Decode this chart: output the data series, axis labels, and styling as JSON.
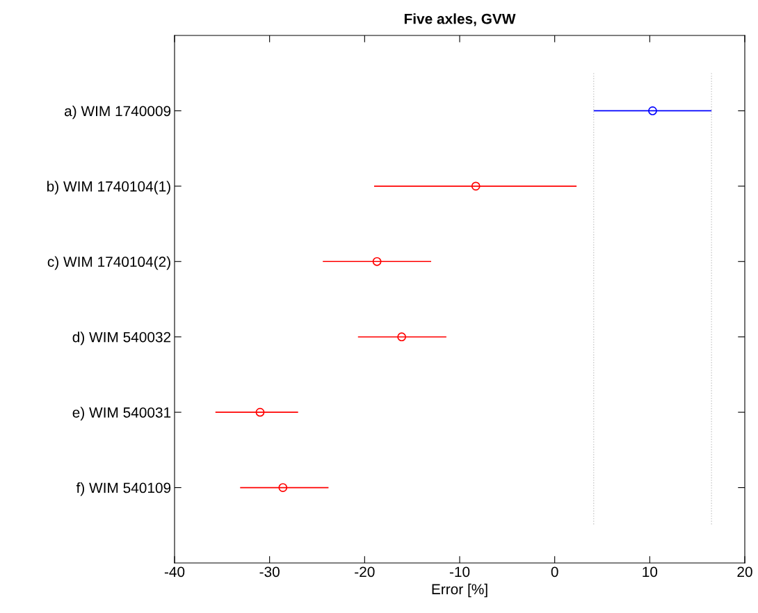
{
  "chart_data": {
    "type": "scatter",
    "orientation": "horizontal",
    "title": "Five axles, GVW",
    "xlabel": "Error [%]",
    "categories": [
      "a) WIM 1740009",
      "b) WIM 1740104(1)",
      "c) WIM 1740104(2)",
      "d) WIM 540032",
      "e) WIM 540031",
      "f) WIM 540109"
    ],
    "values": [
      10.3,
      -8.3,
      -18.7,
      -16.1,
      -31.0,
      -28.6
    ],
    "errors": [
      [
        4.1,
        16.5
      ],
      [
        -19.0,
        2.3
      ],
      [
        -24.4,
        -13.0
      ],
      [
        -20.7,
        -11.4
      ],
      [
        -35.7,
        -27.0
      ],
      [
        -33.1,
        -23.8
      ]
    ],
    "colors": [
      "#0000ff",
      "#ff0000",
      "#ff0000",
      "#ff0000",
      "#ff0000",
      "#ff0000"
    ],
    "marker": "circle",
    "xlim": [
      -40,
      20
    ],
    "xticks": [
      -40,
      -30,
      -20,
      -10,
      0,
      10,
      20
    ],
    "ref_lines": [
      {
        "axis": "x",
        "value": 4.1,
        "color": "#c8c8c8",
        "line_style": "dotted"
      },
      {
        "axis": "x",
        "value": 16.5,
        "color": "#c8c8c8",
        "line_style": "dotted"
      }
    ],
    "grid": false,
    "legend": false
  }
}
